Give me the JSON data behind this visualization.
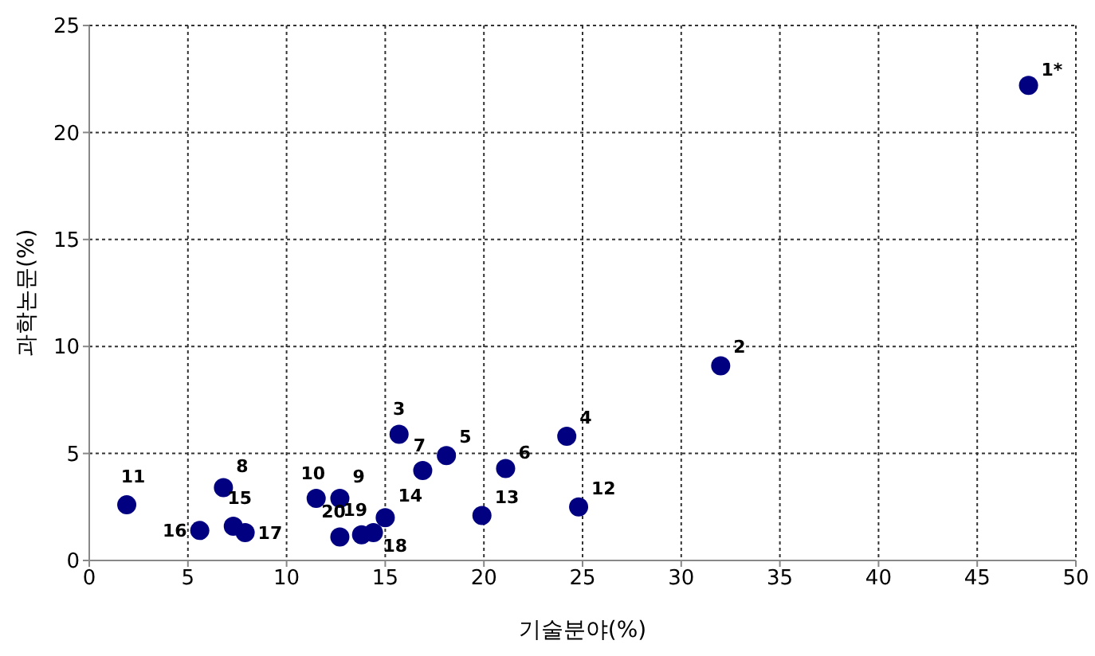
{
  "chart_data": {
    "type": "scatter",
    "xlabel": "기술분야(%)",
    "ylabel": "과학논문(%)",
    "x": [
      47.6,
      32.0,
      15.7,
      24.2,
      18.1,
      21.1,
      16.9,
      6.8,
      12.7,
      11.5,
      1.9,
      24.8,
      19.9,
      15.0,
      7.3,
      5.6,
      7.9,
      14.4,
      13.8,
      12.7
    ],
    "series": [
      {
        "color": "#000080",
        "values": [
          22.2,
          9.1,
          5.9,
          5.8,
          4.9,
          4.3,
          4.2,
          3.4,
          2.9,
          2.9,
          2.6,
          2.5,
          2.1,
          2.0,
          1.6,
          1.4,
          1.3,
          1.3,
          1.2,
          1.1
        ]
      }
    ],
    "annotations": [
      {
        "text": "1*",
        "x": 47.6,
        "y": 22.2
      },
      {
        "text": "2",
        "x": 32.0,
        "y": 9.1
      },
      {
        "text": "3",
        "x": 15.7,
        "y": 5.9
      },
      {
        "text": "4",
        "x": 24.2,
        "y": 5.8
      },
      {
        "text": "5",
        "x": 18.1,
        "y": 4.9
      },
      {
        "text": "6",
        "x": 21.1,
        "y": 4.3
      },
      {
        "text": "7",
        "x": 16.9,
        "y": 4.2
      },
      {
        "text": "8",
        "x": 6.8,
        "y": 3.4
      },
      {
        "text": "9",
        "x": 12.7,
        "y": 2.9
      },
      {
        "text": "10",
        "x": 11.5,
        "y": 2.9
      },
      {
        "text": "11",
        "x": 1.9,
        "y": 2.6
      },
      {
        "text": "12",
        "x": 24.8,
        "y": 2.5
      },
      {
        "text": "13",
        "x": 19.9,
        "y": 2.1
      },
      {
        "text": "14",
        "x": 15.0,
        "y": 2.0
      },
      {
        "text": "15",
        "x": 7.3,
        "y": 1.6
      },
      {
        "text": "16",
        "x": 5.6,
        "y": 1.4
      },
      {
        "text": "17",
        "x": 7.9,
        "y": 1.3
      },
      {
        "text": "18",
        "x": 14.4,
        "y": 1.3
      },
      {
        "text": "19",
        "x": 13.8,
        "y": 1.2
      },
      {
        "text": "20",
        "x": 12.7,
        "y": 1.1
      }
    ],
    "xlim": [
      0,
      50
    ],
    "xticks": [
      0,
      5,
      10,
      15,
      20,
      25,
      30,
      35,
      40,
      45,
      50
    ],
    "ylim": [
      0,
      25
    ],
    "yticks": [
      0,
      5,
      10,
      15,
      20,
      25
    ],
    "grid": true,
    "marker": "circle"
  }
}
